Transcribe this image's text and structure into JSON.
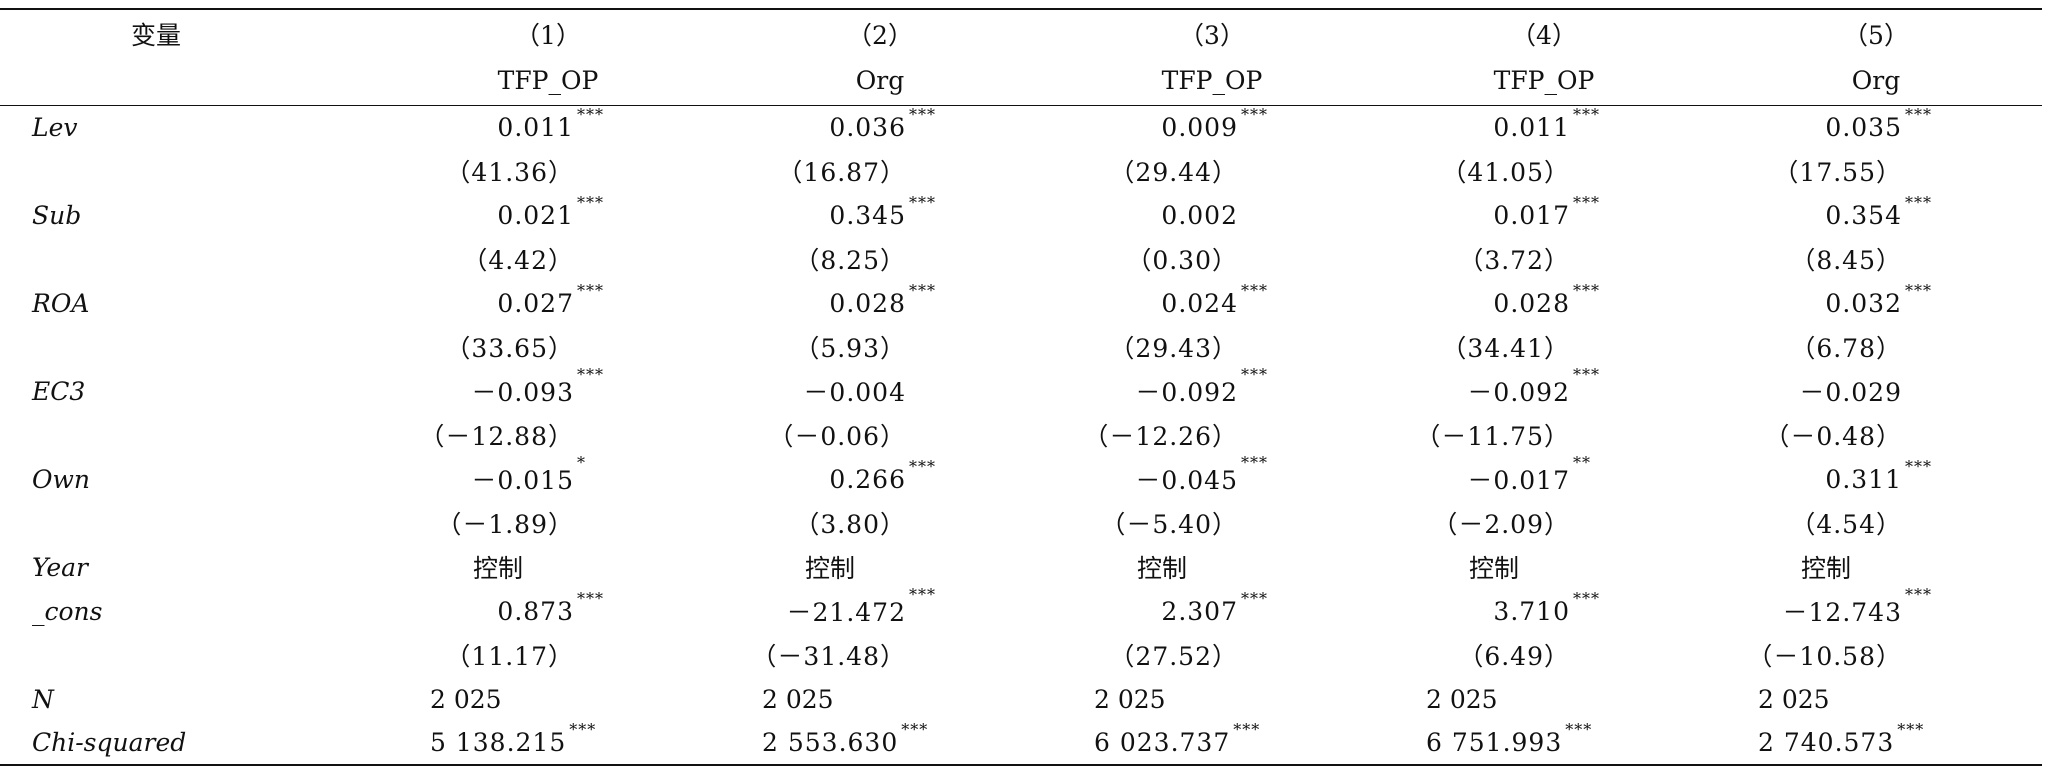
{
  "table": {
    "header": {
      "variable": "变量",
      "columns": [
        {
          "number": "（1）",
          "dependent": "TFP_OP"
        },
        {
          "number": "（2）",
          "dependent": "Org"
        },
        {
          "number": "（3）",
          "dependent": "TFP_OP"
        },
        {
          "number": "（4）",
          "dependent": "TFP_OP"
        },
        {
          "number": "（5）",
          "dependent": "Org"
        }
      ]
    },
    "variables": [
      {
        "label": "Lev",
        "estimates": [
          {
            "value": "0.011",
            "stars": "***"
          },
          {
            "value": "0.036",
            "stars": "***"
          },
          {
            "value": "0.009",
            "stars": "***"
          },
          {
            "value": "0.011",
            "stars": "***"
          },
          {
            "value": "0.035",
            "stars": "***"
          }
        ],
        "t_stats": [
          "（41.36）",
          "（16.87）",
          "（29.44）",
          "（41.05）",
          "（17.55）"
        ]
      },
      {
        "label": "Sub",
        "estimates": [
          {
            "value": "0.021",
            "stars": "***"
          },
          {
            "value": "0.345",
            "stars": "***"
          },
          {
            "value": "0.002"
          },
          {
            "value": "0.017",
            "stars": "***"
          },
          {
            "value": "0.354",
            "stars": "***"
          }
        ],
        "t_stats": [
          "（4.42）",
          "（8.25）",
          "（0.30）",
          "（3.72）",
          "（8.45）"
        ]
      },
      {
        "label": "ROA",
        "estimates": [
          {
            "value": "0.027",
            "stars": "***"
          },
          {
            "value": "0.028",
            "stars": "***"
          },
          {
            "value": "0.024",
            "stars": "***"
          },
          {
            "value": "0.028",
            "stars": "***"
          },
          {
            "value": "0.032",
            "stars": "***"
          }
        ],
        "t_stats": [
          "（33.65）",
          "（5.93）",
          "（29.43）",
          "（34.41）",
          "（6.78）"
        ]
      },
      {
        "label": "EC3",
        "estimates": [
          {
            "value": "－0.093",
            "stars": "***"
          },
          {
            "value": "－0.004"
          },
          {
            "value": "－0.092",
            "stars": "***"
          },
          {
            "value": "－0.092",
            "stars": "***"
          },
          {
            "value": "－0.029"
          }
        ],
        "t_stats": [
          "（－12.88）",
          "（－0.06）",
          "（－12.26）",
          "（－11.75）",
          "（－0.48）"
        ]
      },
      {
        "label": "Own",
        "estimates": [
          {
            "value": "－0.015",
            "stars": "*"
          },
          {
            "value": "0.266",
            "stars": "***"
          },
          {
            "value": "－0.045",
            "stars": "***"
          },
          {
            "value": "－0.017",
            "stars": "**"
          },
          {
            "value": "0.311",
            "stars": "***"
          }
        ],
        "t_stats": [
          "（－1.89）",
          "（3.80）",
          "（－5.40）",
          "（－2.09）",
          "（4.54）"
        ]
      }
    ],
    "controls": {
      "label": "Year",
      "values": [
        "控制",
        "控制",
        "控制",
        "控制",
        "控制"
      ]
    },
    "constant": {
      "label": "_cons",
      "estimates": [
        {
          "value": "0.873",
          "stars": "***"
        },
        {
          "value": "－21.472",
          "stars": "***"
        },
        {
          "value": "2.307",
          "stars": "***"
        },
        {
          "value": "3.710",
          "stars": "***"
        },
        {
          "value": "－12.743",
          "stars": "***"
        }
      ],
      "t_stats": [
        "（11.17）",
        "（－31.48）",
        "（27.52）",
        "（6.49）",
        "（－10.58）"
      ]
    },
    "observations": {
      "label": "N",
      "values": [
        "2 025",
        "2 025",
        "2 025",
        "2 025",
        "2 025"
      ]
    },
    "fit": {
      "label": "Chi-squared",
      "values": [
        {
          "value": "5 138.215",
          "stars": "***"
        },
        {
          "value": "2 553.630",
          "stars": "***"
        },
        {
          "value": "6 023.737",
          "stars": "***"
        },
        {
          "value": "6 751.993",
          "stars": "***"
        },
        {
          "value": "2 740.573",
          "stars": "***"
        }
      ]
    }
  }
}
